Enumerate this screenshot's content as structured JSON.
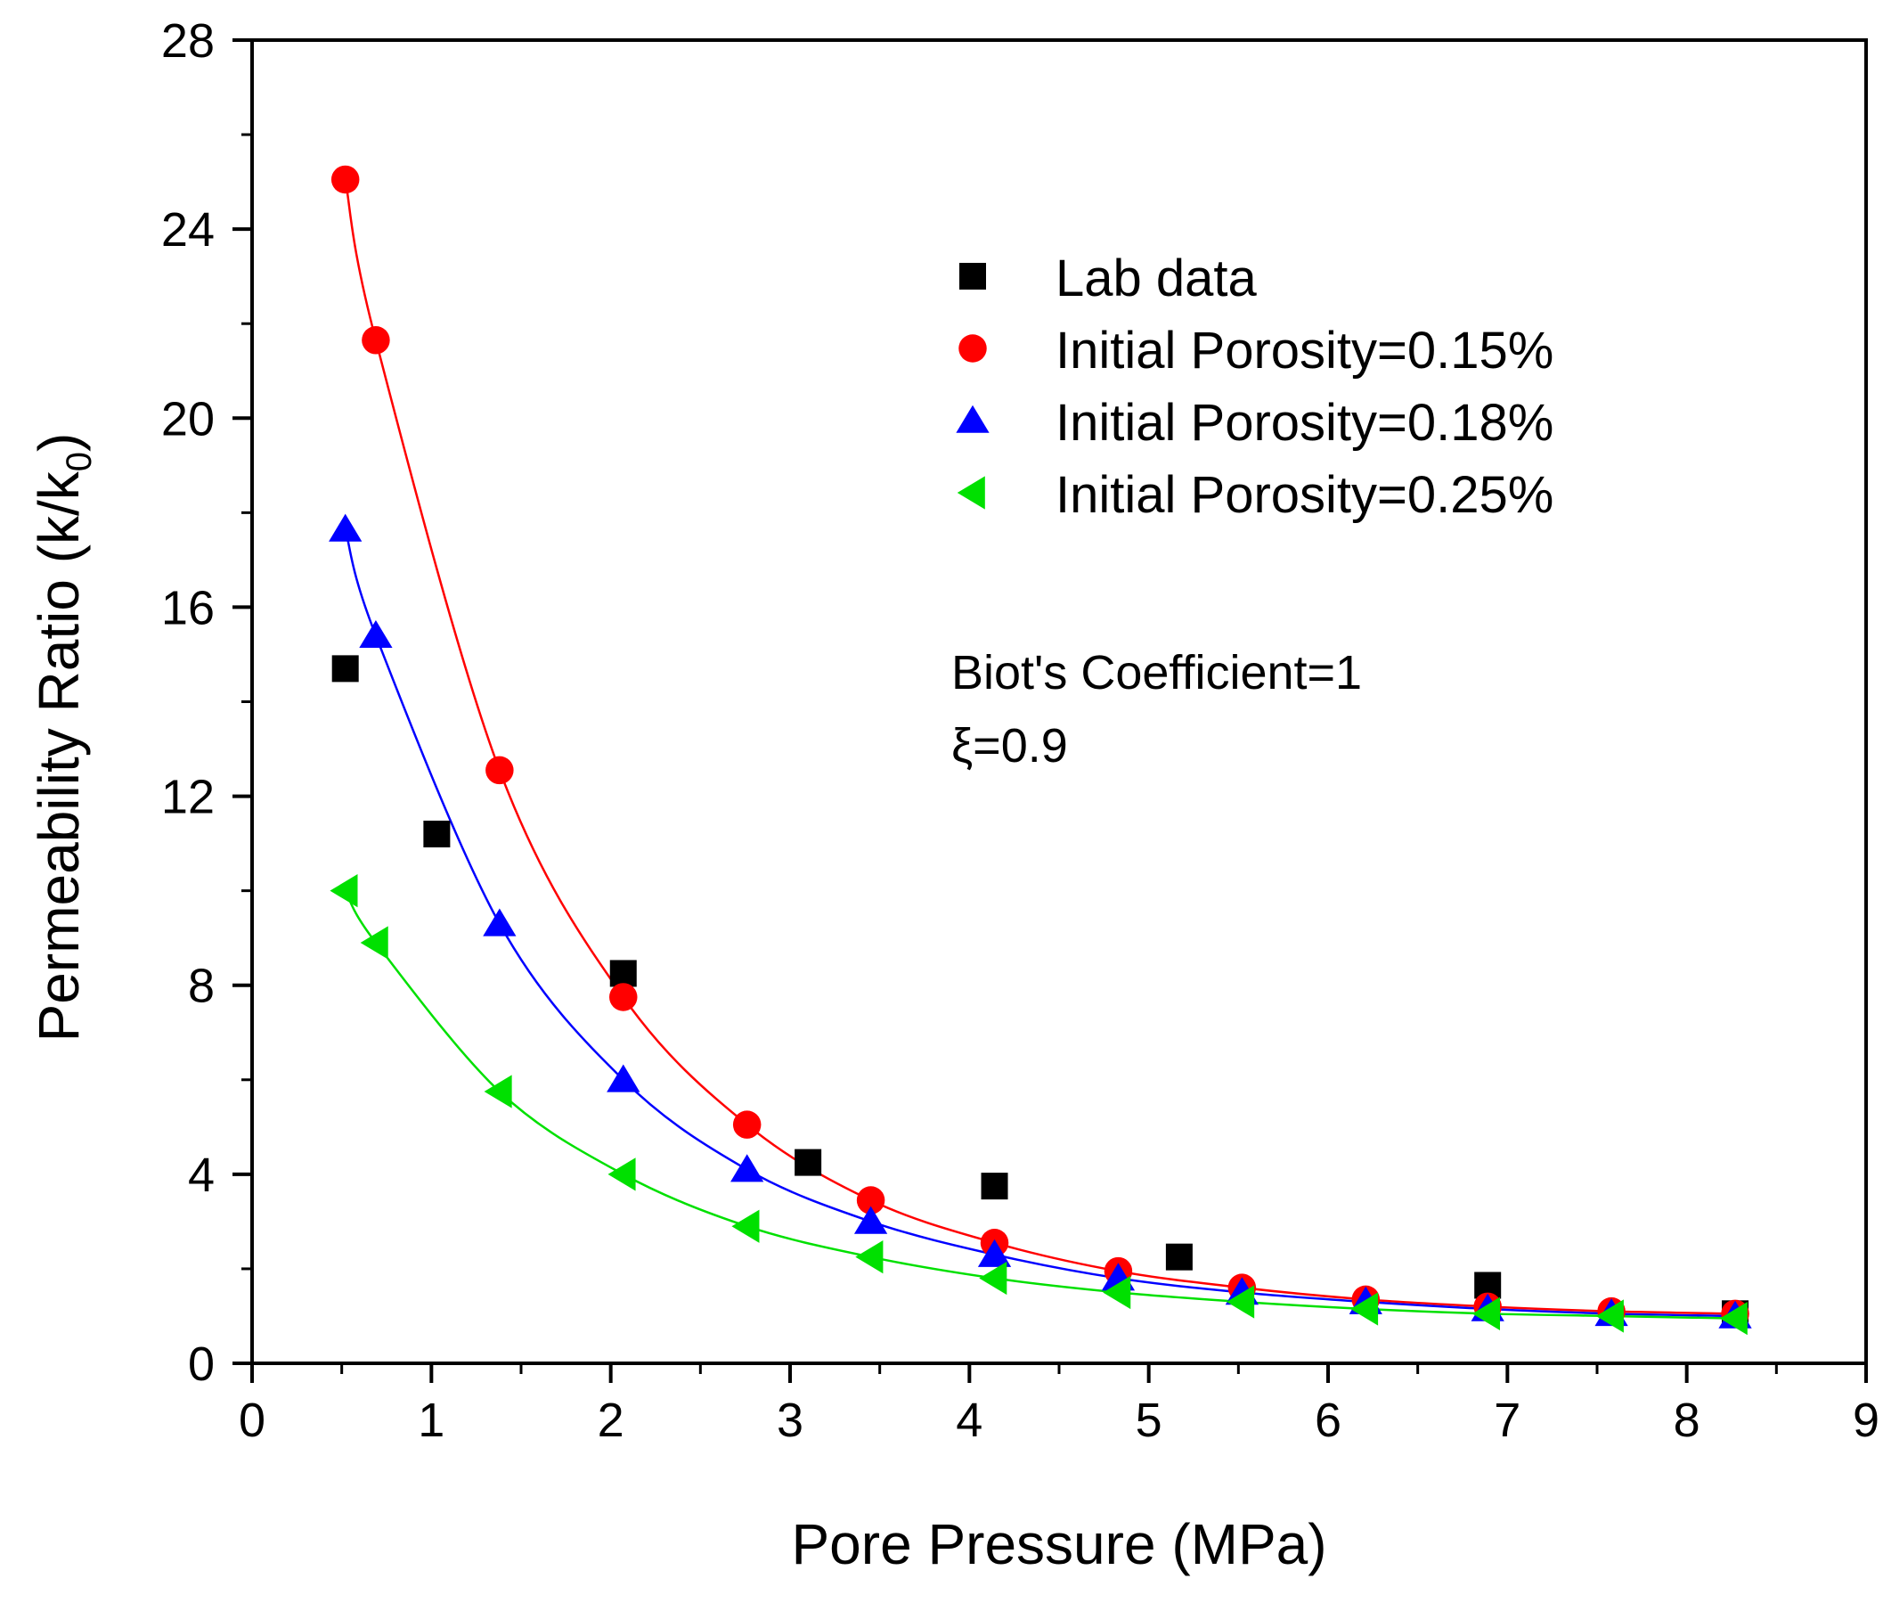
{
  "chart_data": {
    "type": "scatter",
    "xlabel": "Pore Pressure (MPa)",
    "ylabel_main": "Permeability Ratio (k/k",
    "ylabel_sub": "0",
    "ylabel_close": ")",
    "xlim": [
      0,
      9
    ],
    "ylim": [
      0,
      28
    ],
    "xticks": [
      0,
      1,
      2,
      3,
      4,
      5,
      6,
      7,
      8,
      9
    ],
    "yticks": [
      0,
      4,
      8,
      12,
      16,
      20,
      24,
      28
    ],
    "xtick_labels": [
      "0",
      "1",
      "2",
      "3",
      "4",
      "5",
      "6",
      "7",
      "8",
      "9"
    ],
    "ytick_labels": [
      "0",
      "4",
      "8",
      "12",
      "16",
      "20",
      "24",
      "28"
    ],
    "grid": false,
    "legend_position": "top-right",
    "annotations": [
      "Biot's Coefficient=1",
      "ξ=0.9"
    ],
    "series": [
      {
        "name": "Lab data",
        "marker": "square",
        "color": "#000000",
        "line": false,
        "x": [
          0.52,
          1.03,
          2.07,
          3.1,
          4.14,
          5.17,
          6.89,
          8.27
        ],
        "y": [
          14.7,
          11.2,
          8.25,
          4.25,
          3.75,
          2.25,
          1.65,
          1.05
        ]
      },
      {
        "name": "Initial Porosity=0.15%",
        "marker": "circle",
        "color": "#ff0000",
        "line": true,
        "x": [
          0.52,
          0.69,
          1.38,
          2.07,
          2.76,
          3.45,
          4.14,
          4.83,
          5.52,
          6.21,
          6.89,
          7.58,
          8.27
        ],
        "y": [
          25.05,
          21.65,
          12.55,
          7.75,
          5.05,
          3.45,
          2.55,
          1.95,
          1.6,
          1.35,
          1.2,
          1.1,
          1.05
        ]
      },
      {
        "name": "Initial Porosity=0.18%",
        "marker": "triangle-up",
        "color": "#0000ff",
        "line": true,
        "x": [
          0.52,
          0.69,
          1.38,
          2.07,
          2.76,
          3.45,
          4.14,
          4.83,
          5.52,
          6.21,
          6.89,
          7.58,
          8.27
        ],
        "y": [
          17.65,
          15.4,
          9.3,
          6.0,
          4.1,
          3.0,
          2.3,
          1.8,
          1.5,
          1.3,
          1.15,
          1.05,
          1.0
        ]
      },
      {
        "name": "Initial Porosity=0.25%",
        "marker": "triangle-left",
        "color": "#00e000",
        "line": true,
        "x": [
          0.52,
          0.69,
          1.38,
          2.07,
          2.76,
          3.45,
          4.14,
          4.83,
          5.52,
          6.21,
          6.89,
          7.58,
          8.27
        ],
        "y": [
          10.0,
          8.9,
          5.75,
          4.0,
          2.9,
          2.25,
          1.8,
          1.5,
          1.3,
          1.15,
          1.05,
          1.0,
          0.95
        ]
      }
    ]
  }
}
